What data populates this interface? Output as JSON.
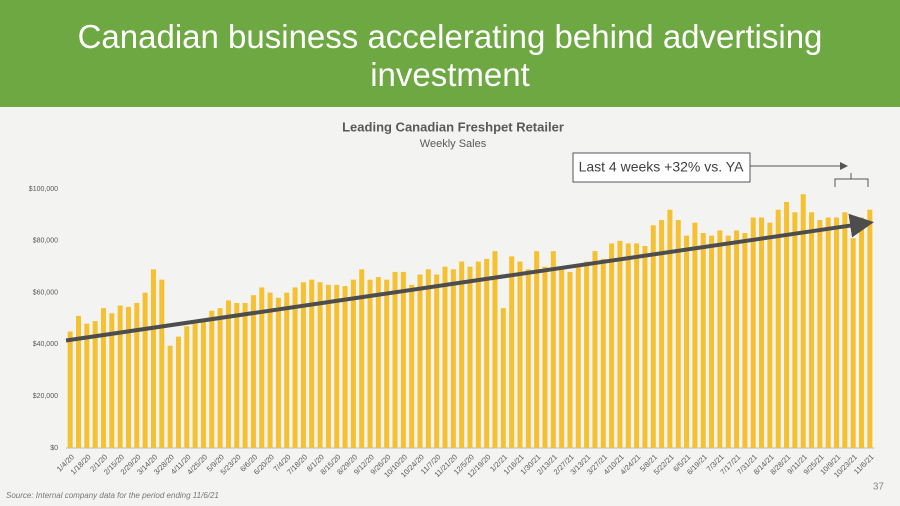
{
  "slide_title": "Canadian business accelerating behind advertising investment",
  "source": "Source:  Internal company data for the period ending 11/6/21",
  "page_number": "37",
  "chart_data": {
    "type": "bar",
    "title": "Leading Canadian Freshpet Retailer",
    "subtitle": "Weekly Sales",
    "annotation": "Last 4 weeks +32% vs. YA",
    "color": "#f5c131",
    "grid": false,
    "ylim": [
      0,
      100000
    ],
    "yticks": [
      {
        "value": 0,
        "label": "$0"
      },
      {
        "value": 20000,
        "label": "$20,000"
      },
      {
        "value": 40000,
        "label": "$40,000"
      },
      {
        "value": 60000,
        "label": "$60,000"
      },
      {
        "value": 80000,
        "label": "$80,000"
      },
      {
        "value": 100000,
        "label": "$100,000"
      }
    ],
    "trendline": {
      "color": "#4d4d4d",
      "values": [
        41500,
        87000
      ]
    },
    "categories": [
      "1/4/20",
      null,
      "1/18/20",
      null,
      "2/1/20",
      null,
      "2/15/20",
      null,
      "2/29/20",
      null,
      "3/14/20",
      null,
      "3/28/20",
      null,
      "4/11/20",
      null,
      "4/25/20",
      null,
      "5/9/20",
      null,
      "5/23/20",
      null,
      "6/6/20",
      null,
      "6/20/20",
      null,
      "7/4/20",
      null,
      "7/18/20",
      null,
      "8/1/20",
      null,
      "8/15/20",
      null,
      "8/29/20",
      null,
      "9/12/20",
      null,
      "9/26/20",
      null,
      "10/10/20",
      null,
      "10/24/20",
      null,
      "11/7/20",
      null,
      "11/21/20",
      null,
      "12/5/20",
      null,
      "12/19/20",
      null,
      "1/2/21",
      null,
      "1/16/21",
      null,
      "1/30/21",
      null,
      "2/13/21",
      null,
      "2/27/21",
      null,
      "3/13/21",
      null,
      "3/27/21",
      null,
      "4/10/21",
      null,
      "4/24/21",
      null,
      "5/8/21",
      null,
      "5/22/21",
      null,
      "6/5/21",
      null,
      "6/19/21",
      null,
      "7/3/21",
      null,
      "7/17/21",
      null,
      "7/31/21",
      null,
      "8/14/21",
      null,
      "8/28/21",
      null,
      "9/11/21",
      null,
      "9/25/21",
      null,
      "10/9/21",
      null,
      "10/23/21",
      null,
      "11/6/21"
    ],
    "values": [
      45000,
      51000,
      48000,
      49000,
      54000,
      52000,
      55000,
      54500,
      56000,
      60000,
      69000,
      65000,
      39500,
      43000,
      47000,
      48000,
      50000,
      53000,
      54000,
      57000,
      56000,
      56000,
      59000,
      62000,
      60000,
      58000,
      60000,
      62000,
      64000,
      65000,
      64000,
      63000,
      63000,
      62500,
      65000,
      69000,
      65000,
      66000,
      65000,
      68000,
      68000,
      63000,
      67000,
      69000,
      67000,
      70000,
      69000,
      72000,
      70000,
      72000,
      73000,
      76000,
      54000,
      74000,
      72000,
      69000,
      76000,
      70000,
      76000,
      69000,
      68000,
      70000,
      72000,
      76000,
      73000,
      79000,
      80000,
      79000,
      79000,
      78000,
      86000,
      88000,
      92000,
      88000,
      82000,
      87000,
      83000,
      82000,
      84000,
      82000,
      84000,
      83000,
      89000,
      89000,
      87000,
      92000,
      95000,
      91000,
      98000,
      91000,
      88000,
      89000,
      89000,
      91000,
      81000,
      89000,
      92000
    ]
  }
}
